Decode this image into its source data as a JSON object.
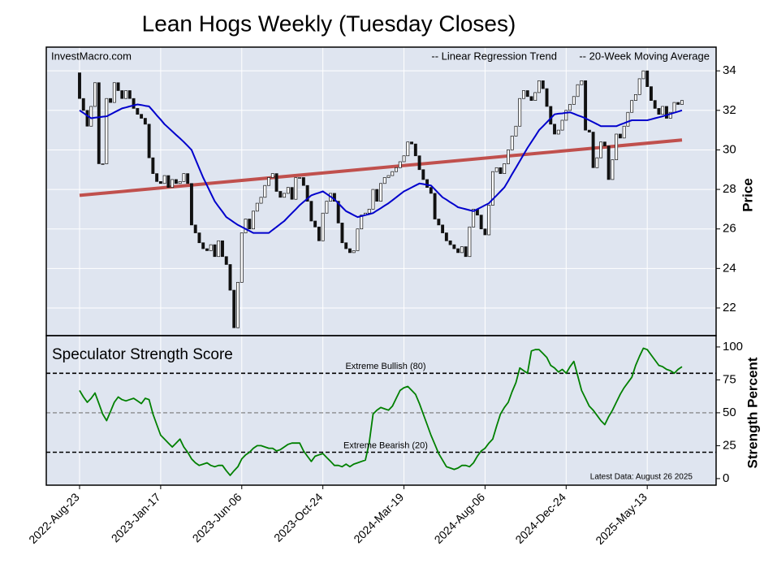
{
  "chart_data": [
    {
      "type": "candlestick",
      "title": "Lean Hogs Weekly (Tuesday Closes)",
      "source": "InvestMacro.com",
      "y_label": "Price",
      "open": [
        33.9,
        32.6,
        32.0,
        31.2,
        32.2,
        33.4,
        29.3,
        29.3,
        32.6,
        32.4,
        33.4,
        33.0,
        32.6,
        33.0,
        32.6,
        32.1,
        31.8,
        31.6,
        31.3,
        29.6,
        28.8,
        28.4,
        28.3,
        28.7,
        28.1,
        28.5,
        28.3,
        28.4,
        28.8,
        28.3,
        26.2,
        25.8,
        25.3,
        25.0,
        24.9,
        25.2,
        24.6,
        25.4,
        24.6,
        24.2,
        22.9,
        21.0,
        23.3,
        25.8,
        26.5,
        26.0,
        26.9,
        27.3,
        27.6,
        28.2,
        28.6,
        28.8,
        27.9,
        27.6,
        27.8,
        28.1,
        27.5,
        28.6,
        28.6,
        28.2,
        27.4,
        26.4,
        26.1,
        25.4,
        26.8,
        27.4,
        27.8,
        27.4,
        26.3,
        25.3,
        25.0,
        24.8,
        24.9,
        26.0,
        26.7,
        26.8,
        27.0,
        28.0,
        27.4,
        28.3,
        28.6,
        28.7,
        28.9,
        29.1,
        29.4,
        29.7,
        30.4,
        30.3,
        29.7,
        29.0,
        28.5,
        28.1,
        27.8,
        26.5,
        26.2,
        25.8,
        25.4,
        25.2,
        25.0,
        24.8,
        25.1,
        24.6,
        26.1,
        27.0,
        26.7,
        26.0,
        25.7,
        27.2,
        28.9,
        29.1,
        28.8,
        29.3,
        30.0,
        30.7,
        31.2,
        32.6,
        33.0,
        32.7,
        32.5,
        32.9,
        33.5,
        33.1,
        32.2,
        31.3,
        30.8,
        31.0,
        31.5,
        32.0,
        32.3,
        32.7,
        33.3,
        33.5,
        31.0,
        30.9,
        29.1,
        29.6,
        30.4,
        30.2,
        28.5,
        29.5,
        30.8,
        30.6,
        31.2,
        31.9,
        32.5,
        32.8,
        33.6,
        34.0,
        33.2,
        32.5,
        32.1,
        31.8,
        32.2,
        31.6,
        31.9,
        32.4,
        32.3
      ],
      "close": [
        32.6,
        32.0,
        31.2,
        32.2,
        33.4,
        29.3,
        29.3,
        32.6,
        32.4,
        33.4,
        33.0,
        32.6,
        33.0,
        32.6,
        32.1,
        31.8,
        31.6,
        31.3,
        29.6,
        28.8,
        28.4,
        28.3,
        28.7,
        28.1,
        28.5,
        28.3,
        28.4,
        28.8,
        28.3,
        26.2,
        25.8,
        25.3,
        25.0,
        24.9,
        25.2,
        24.6,
        25.4,
        24.6,
        24.2,
        22.9,
        21.0,
        23.3,
        25.8,
        26.5,
        26.0,
        26.9,
        27.3,
        27.6,
        28.2,
        28.6,
        28.8,
        27.9,
        27.6,
        27.8,
        28.1,
        27.5,
        28.6,
        28.6,
        28.2,
        27.4,
        26.4,
        26.1,
        25.4,
        26.8,
        27.4,
        27.8,
        27.4,
        26.3,
        25.3,
        25.0,
        24.8,
        24.9,
        26.0,
        26.7,
        26.8,
        27.0,
        28.0,
        27.4,
        28.3,
        28.6,
        28.7,
        28.9,
        29.1,
        29.4,
        29.7,
        30.4,
        30.3,
        29.7,
        29.0,
        28.5,
        28.1,
        27.8,
        26.5,
        26.2,
        25.8,
        25.4,
        25.2,
        25.0,
        24.8,
        25.1,
        24.6,
        26.1,
        27.0,
        26.7,
        26.0,
        25.7,
        27.2,
        28.9,
        29.1,
        28.8,
        29.3,
        30.0,
        30.7,
        31.2,
        32.6,
        33.0,
        32.7,
        32.5,
        32.9,
        33.5,
        33.1,
        32.2,
        31.3,
        30.8,
        31.0,
        31.5,
        32.0,
        32.3,
        32.7,
        33.3,
        33.5,
        31.0,
        30.9,
        29.1,
        29.6,
        30.4,
        30.2,
        28.5,
        29.5,
        30.8,
        30.6,
        31.2,
        31.9,
        32.5,
        32.8,
        33.6,
        34.0,
        33.2,
        32.5,
        32.1,
        31.8,
        32.2,
        31.6,
        31.9,
        32.4,
        32.3,
        32.5
      ],
      "series": [
        {
          "name": "-- 20-Week Moving Average",
          "color": "#0000cc",
          "values": [
            32.0,
            31.87,
            31.73,
            31.6,
            31.63,
            31.65,
            31.68,
            31.7,
            31.8,
            31.9,
            32.0,
            32.1,
            32.15,
            32.2,
            32.25,
            32.3,
            32.27,
            32.23,
            32.2,
            31.98,
            31.75,
            31.53,
            31.3,
            31.12,
            30.94,
            30.76,
            30.58,
            30.4,
            30.2,
            30.0,
            29.53,
            29.07,
            28.6,
            28.2,
            27.8,
            27.4,
            27.13,
            26.87,
            26.6,
            26.47,
            26.33,
            26.2,
            26.1,
            26.0,
            25.9,
            25.8,
            25.8,
            25.8,
            25.8,
            25.8,
            25.95,
            26.1,
            26.25,
            26.4,
            26.6,
            26.8,
            27.0,
            27.2,
            27.37,
            27.53,
            27.7,
            27.77,
            27.83,
            27.9,
            27.77,
            27.63,
            27.5,
            27.3,
            27.1,
            26.9,
            26.8,
            26.7,
            26.6,
            26.65,
            26.7,
            26.75,
            26.8,
            26.93,
            27.05,
            27.18,
            27.3,
            27.45,
            27.6,
            27.75,
            27.9,
            28.0,
            28.1,
            28.2,
            28.3,
            28.27,
            28.23,
            28.2,
            28.0,
            27.8,
            27.6,
            27.48,
            27.35,
            27.23,
            27.1,
            27.05,
            27.0,
            26.95,
            26.9,
            27.0,
            27.1,
            27.2,
            27.3,
            27.5,
            27.7,
            27.9,
            28.1,
            28.43,
            28.77,
            29.1,
            29.43,
            29.77,
            30.1,
            30.4,
            30.7,
            31.0,
            31.2,
            31.4,
            31.6,
            31.8,
            31.83,
            31.85,
            31.88,
            31.9,
            31.83,
            31.75,
            31.68,
            31.6,
            31.5,
            31.4,
            31.3,
            31.2,
            31.2,
            31.2,
            31.2,
            31.2,
            31.28,
            31.35,
            31.43,
            31.5,
            31.5,
            31.5,
            31.5,
            31.5,
            31.55,
            31.6,
            31.65,
            31.7,
            31.76,
            31.82,
            31.88,
            31.94,
            32.0
          ]
        }
      ],
      "trend": {
        "name": "-- Linear Regression Trend",
        "color": "#c0504d",
        "start": 27.7,
        "end": 30.5
      },
      "ylim": [
        20.6,
        35.2
      ],
      "yticks": [
        22,
        24,
        26,
        28,
        30,
        32,
        34
      ],
      "grid": true,
      "up_color": "#ffffff",
      "down_color": "#111111"
    },
    {
      "type": "line",
      "title": "Speculator Strength Score",
      "y_label": "Strength Percent",
      "note": "Latest Data: August 26 2025",
      "categories": [
        "2022-Aug-23",
        null,
        null,
        null,
        null,
        null,
        null,
        null,
        null,
        null,
        null,
        null,
        null,
        null,
        null,
        null,
        null,
        null,
        null,
        null,
        null,
        "2023-Jan-17",
        null,
        null,
        null,
        null,
        null,
        null,
        null,
        null,
        null,
        null,
        null,
        null,
        null,
        null,
        null,
        null,
        null,
        null,
        null,
        null,
        "2023-Jun-06",
        null,
        null,
        null,
        null,
        null,
        null,
        null,
        null,
        null,
        null,
        null,
        null,
        null,
        null,
        null,
        null,
        null,
        null,
        null,
        null,
        "2023-Oct-24",
        null,
        null,
        null,
        null,
        null,
        null,
        null,
        null,
        null,
        null,
        null,
        null,
        null,
        null,
        null,
        null,
        null,
        null,
        null,
        null,
        "2024-Mar-19",
        null,
        null,
        null,
        null,
        null,
        null,
        null,
        null,
        null,
        null,
        null,
        null,
        null,
        null,
        null,
        null,
        null,
        null,
        null,
        null,
        "2024-Aug-06",
        null,
        null,
        null,
        null,
        null,
        null,
        null,
        null,
        null,
        null,
        null,
        null,
        null,
        null,
        null,
        null,
        null,
        null,
        null,
        null,
        "2024-Dec-24",
        null,
        null,
        null,
        null,
        null,
        null,
        null,
        null,
        null,
        null,
        null,
        null,
        null,
        null,
        null,
        null,
        null,
        null,
        null,
        null,
        "2025-May-13",
        null,
        null,
        null,
        null,
        null,
        null,
        null,
        null,
        null
      ],
      "series": [
        {
          "color": "#008000",
          "values": [
            67,
            62,
            58,
            61,
            65,
            57,
            49,
            44,
            51,
            58,
            62,
            60,
            59,
            60,
            61,
            59,
            57,
            61,
            60,
            49,
            41,
            33,
            30,
            27,
            24,
            27,
            30,
            24,
            20,
            15,
            12,
            10,
            11,
            12,
            10,
            9,
            10,
            10,
            6,
            2.5,
            6,
            9,
            15,
            18,
            20,
            23,
            25,
            25,
            24,
            23,
            23,
            21,
            22,
            24,
            26,
            27,
            27,
            27,
            21,
            17,
            13,
            17,
            18,
            19,
            16,
            13,
            10,
            10,
            9,
            11,
            9,
            11,
            12,
            13,
            14,
            27,
            49,
            52,
            54,
            53,
            52,
            55,
            61,
            67,
            69,
            70,
            67,
            64,
            57,
            49,
            41,
            33,
            26,
            19,
            14,
            9,
            8,
            7,
            8,
            10,
            10,
            9,
            12,
            17,
            21,
            23,
            27,
            30,
            40,
            49,
            54,
            58,
            66,
            73,
            84,
            82,
            80,
            97,
            98,
            98,
            95,
            92,
            86,
            84,
            81,
            83,
            80,
            85,
            89,
            78,
            67,
            61,
            55,
            52,
            48,
            44,
            41,
            47,
            52,
            58,
            64,
            69,
            73,
            77,
            86,
            93,
            99,
            98,
            94,
            90,
            86,
            85,
            83,
            82,
            80,
            83,
            85
          ]
        }
      ],
      "reference_lines": [
        {
          "value": 80,
          "label": "Extreme Bullish (80)",
          "color": "#000000"
        },
        {
          "value": 50,
          "color": "#777777"
        },
        {
          "value": 20,
          "label": "Extreme Bearish (20)",
          "color": "#000000"
        }
      ],
      "ylim": [
        -5,
        108.6
      ],
      "yticks": [
        0,
        25,
        50,
        75,
        100
      ],
      "grid": true
    }
  ]
}
